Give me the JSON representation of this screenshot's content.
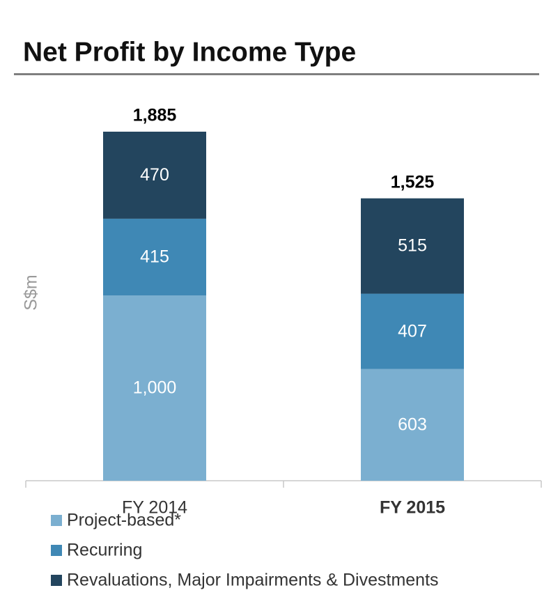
{
  "chart_data": {
    "type": "stacked_bar",
    "title": "Net Profit by Income Type",
    "y_label": "S$m",
    "categories": [
      "FY 2014",
      "FY 2015"
    ],
    "series": [
      {
        "name": "Project-based*",
        "color": "#7bafd0",
        "values": [
          1000,
          603
        ],
        "value_labels": [
          "1,000",
          "603"
        ]
      },
      {
        "name": "Recurring",
        "color": "#3f88b5",
        "values": [
          415,
          407
        ]
      },
      {
        "name": "Revaluations, Major Impairments & Divestments",
        "color": "#23455e",
        "values": [
          470,
          515
        ]
      }
    ],
    "totals": {
      "values": [
        1885,
        1525
      ],
      "value_labels": [
        "1,885",
        "1,525"
      ]
    }
  }
}
